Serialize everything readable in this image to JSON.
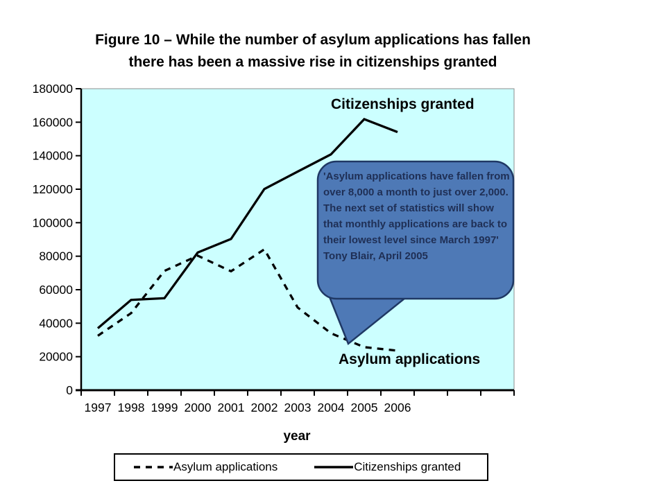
{
  "title": {
    "line1": "Figure 10 – While the number of asylum applications has fallen",
    "line2": "there has been a massive rise in citizenships granted"
  },
  "chart_data": {
    "type": "line",
    "x": [
      1997,
      1998,
      1999,
      2000,
      2001,
      2002,
      2003,
      2004,
      2005,
      2006
    ],
    "series": [
      {
        "name": "Asylum applications",
        "style": "dashed",
        "color": "#000000",
        "values": [
          32500,
          46000,
          71200,
          80300,
          71000,
          84100,
          49400,
          34000,
          25700,
          23600
        ]
      },
      {
        "name": "Citizenships granted",
        "style": "solid",
        "color": "#000000",
        "values": [
          37000,
          53900,
          54900,
          82200,
          90300,
          120100,
          130500,
          140800,
          161800,
          154100
        ]
      }
    ],
    "xlabel": "year",
    "ylabel": "",
    "ylim": [
      0,
      180000
    ],
    "ytick_step": 20000,
    "grid": false,
    "legend_position": "bottom",
    "plot_bg": "#CCFFFF",
    "axis_color": "#000000"
  },
  "series_labels": {
    "citizenships": "Citizenships granted",
    "asylum": "Asylum applications"
  },
  "callout": {
    "quote": "'Asylum applications have fallen from over 8,000 a month to just over 2,000. The next set of statistics will show that monthly applications are back to their lowest level since March 1997'",
    "attribution": "Tony Blair, April 2005",
    "fill": "#4E79B6",
    "border": "#1F3864",
    "text_color": "#1F2F55"
  },
  "x_axis_title": "year",
  "legend": {
    "items": [
      {
        "label": "Asylum applications",
        "style": "dashed",
        "color": "#000000"
      },
      {
        "label": "Citizenships granted",
        "style": "solid",
        "color": "#000000"
      }
    ]
  }
}
